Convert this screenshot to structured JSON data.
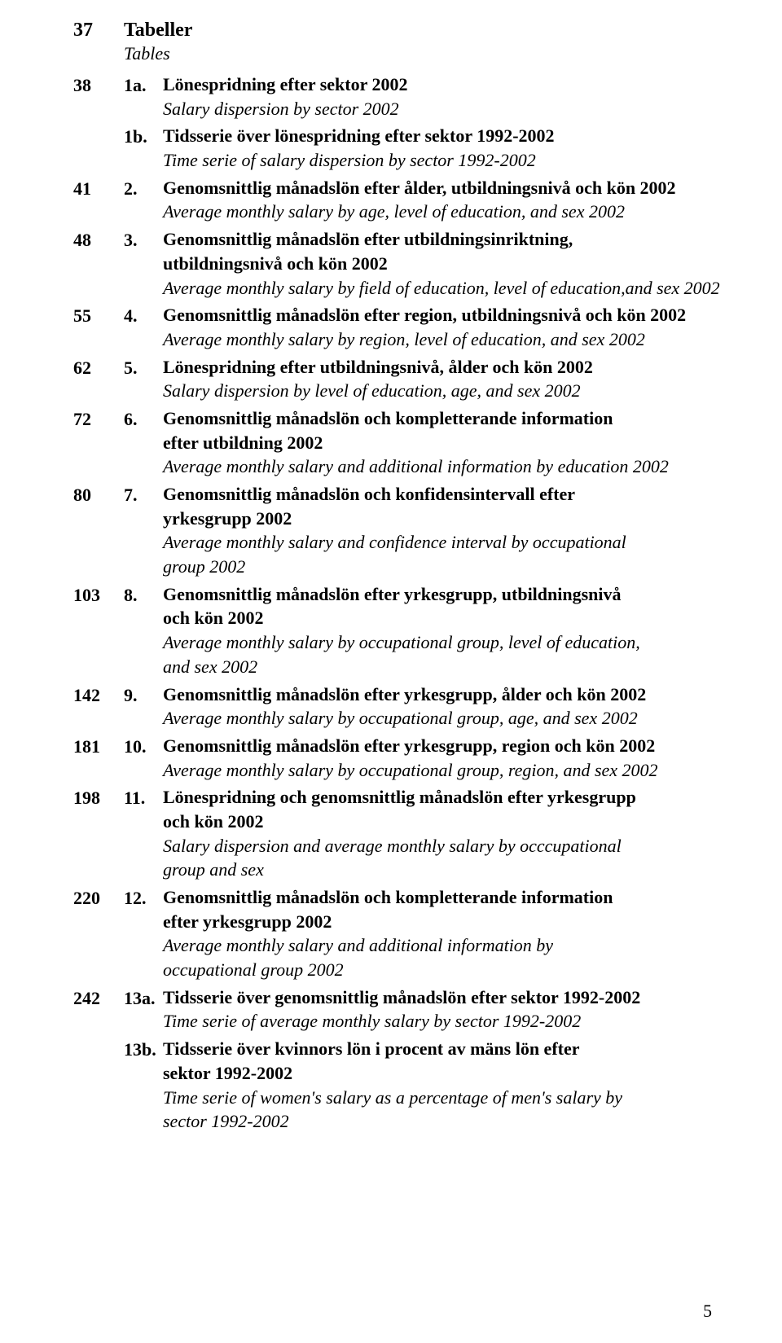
{
  "colors": {
    "text": "#000000",
    "background": "#ffffff"
  },
  "typography": {
    "font_family": "Book Antiqua / Palatino serif",
    "base_size_pt": 16,
    "bold_weight": 700
  },
  "section": {
    "page": "37",
    "title": "Tabeller",
    "subtitle": "Tables"
  },
  "entries": [
    {
      "page": "38",
      "num": "1a.",
      "title_lines": [
        "Lönespridning efter sektor 2002"
      ],
      "italic_lines": [
        "Salary dispersion by sector 2002"
      ]
    },
    {
      "page": "",
      "num": "1b.",
      "title_lines": [
        "Tidsserie över lönespridning efter sektor 1992-2002"
      ],
      "italic_lines": [
        "Time serie of salary dispersion by sector 1992-2002"
      ]
    },
    {
      "page": "41",
      "num": "2.",
      "title_lines": [
        "Genomsnittlig månadslön efter ålder, utbildningsnivå och kön 2002"
      ],
      "italic_lines": [
        "Average monthly salary by age, level of education, and sex 2002"
      ]
    },
    {
      "page": "48",
      "num": "3.",
      "title_lines": [
        "Genomsnittlig månadslön efter utbildningsinriktning,",
        "utbildningsnivå och kön 2002"
      ],
      "italic_lines": [
        "Average monthly salary by field of education, level of education,and sex 2002"
      ]
    },
    {
      "page": "55",
      "num": "4.",
      "title_lines": [
        "Genomsnittlig månadslön efter region, utbildningsnivå och kön 2002"
      ],
      "italic_lines": [
        "Average monthly salary by region, level of education, and sex 2002"
      ]
    },
    {
      "page": "62",
      "num": "5.",
      "title_lines": [
        "Lönespridning efter utbildningsnivå, ålder och kön 2002"
      ],
      "italic_lines": [
        "Salary dispersion by level of education, age, and sex 2002"
      ]
    },
    {
      "page": "72",
      "num": "6.",
      "title_lines": [
        "Genomsnittlig månadslön och kompletterande information",
        "efter  utbildning 2002"
      ],
      "italic_lines": [
        "Average monthly salary and additional information by education 2002"
      ]
    },
    {
      "page": "80",
      "num": "7.",
      "title_lines": [
        "Genomsnittlig månadslön och konfidensintervall efter",
        "yrkesgrupp 2002"
      ],
      "italic_lines": [
        "Average monthly salary and confidence interval by occupational",
        "group 2002"
      ]
    },
    {
      "page": "103",
      "num": "8.",
      "title_lines": [
        "Genomsnittlig månadslön efter yrkesgrupp, utbildningsnivå",
        "och kön 2002"
      ],
      "italic_lines": [
        "Average monthly salary by occupational group, level of education,",
        "and sex 2002"
      ]
    },
    {
      "page": "142",
      "num": "9.",
      "title_lines": [
        "Genomsnittlig månadslön efter yrkesgrupp, ålder och kön 2002"
      ],
      "italic_lines": [
        "Average monthly salary by occupational group, age, and sex 2002"
      ]
    },
    {
      "page": "181",
      "num": "10.",
      "title_lines": [
        "Genomsnittlig månadslön efter yrkesgrupp, region och kön 2002"
      ],
      "italic_lines": [
        "Average monthly salary by occupational group, region, and sex 2002"
      ]
    },
    {
      "page": "198",
      "num": "11.",
      "title_lines": [
        "Lönespridning och genomsnittlig månadslön efter yrkesgrupp",
        "och kön 2002"
      ],
      "italic_lines": [
        "Salary dispersion and average monthly salary by occcupational",
        "group and sex"
      ]
    },
    {
      "page": "220",
      "num": "12.",
      "title_lines": [
        "Genomsnittlig månadslön och kompletterande information",
        " efter yrkesgrupp 2002"
      ],
      "italic_lines": [
        "Average monthly salary and additional information by",
        "occupational group  2002"
      ]
    },
    {
      "page": "242",
      "num": "13a.",
      "title_lines": [
        "Tidsserie över genomsnittlig månadslön efter sektor 1992-2002"
      ],
      "italic_lines": [
        "Time serie of average monthly salary by sector 1992-2002"
      ]
    },
    {
      "page": "",
      "num": "13b.",
      "title_lines": [
        "Tidsserie över kvinnors lön i procent av mäns lön  efter",
        "sektor 1992-2002"
      ],
      "italic_lines": [
        "Time serie of women's salary as a percentage of men's salary by",
        "sector 1992-2002"
      ]
    }
  ],
  "page_number": "5"
}
